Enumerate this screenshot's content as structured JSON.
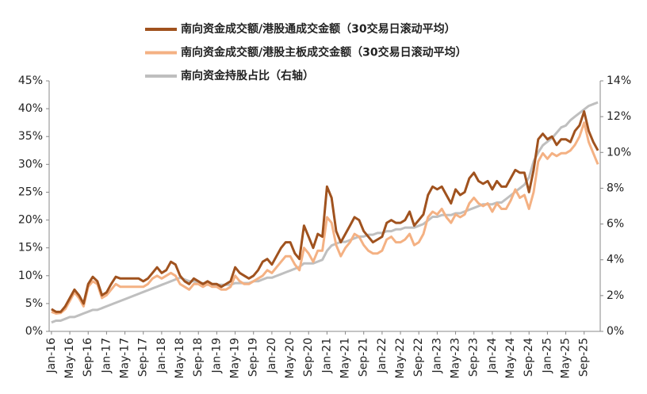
{
  "chart_data": {
    "type": "line",
    "categories": [
      "Jan-16",
      null,
      null,
      null,
      "May-16",
      null,
      null,
      null,
      "Sep-16",
      null,
      null,
      null,
      "Jan-17",
      null,
      null,
      null,
      "May-17",
      null,
      null,
      null,
      "Sep-17",
      null,
      null,
      null,
      "Jan-18",
      null,
      null,
      null,
      "May-18",
      null,
      null,
      null,
      "Sep-18",
      null,
      null,
      null,
      "Jan-19",
      null,
      null,
      null,
      "May-19",
      null,
      null,
      null,
      "Sep-19",
      null,
      null,
      null,
      "Jan-20",
      null,
      null,
      null,
      "May-20",
      null,
      null,
      null,
      "Sep-20",
      null,
      null,
      null,
      "Jan-21",
      null,
      null,
      null,
      "May-21",
      null,
      null,
      null,
      "Sep-21",
      null,
      null,
      null,
      "Jan-22",
      null,
      null,
      null,
      "May-22",
      null,
      null,
      null,
      "Sep-22",
      null,
      null,
      null,
      "Jan-23",
      null,
      null,
      null,
      "May-23",
      null,
      null,
      null,
      "Sep-23",
      null,
      null,
      null,
      "Jan-24",
      null,
      null,
      null,
      "May-24",
      null,
      null,
      null,
      "Sep-24",
      null,
      null,
      null,
      "Jan-25",
      null,
      null,
      null,
      "May-25",
      null,
      null,
      null,
      "Sep-25",
      null,
      null,
      null
    ],
    "series": [
      {
        "name": "南向资金成交额/港股通成交金额（30交易日滚动平均）",
        "color": "#a0521e",
        "values": [
          4,
          3.5,
          3.5,
          4.5,
          6,
          7.5,
          6.5,
          5,
          8.5,
          9.8,
          9,
          6.5,
          7,
          8.5,
          9.8,
          9.5,
          9.5,
          9.5,
          9.5,
          9.5,
          9,
          9.5,
          10.5,
          11.5,
          10.5,
          11,
          12.5,
          12,
          10,
          9,
          8.5,
          9.5,
          9,
          8.5,
          9,
          8.5,
          8.5,
          8,
          8.5,
          9,
          11.5,
          10.5,
          10,
          9.5,
          10,
          11,
          12.5,
          13,
          12,
          13.5,
          15,
          16,
          16,
          14,
          13,
          19,
          17,
          15,
          17.5,
          17,
          26,
          24,
          18,
          16,
          17.5,
          19,
          20.5,
          20,
          18,
          17,
          16,
          16.5,
          17,
          19.5,
          20,
          19.5,
          19.5,
          20,
          21.5,
          19,
          20,
          21,
          24.5,
          26,
          25.5,
          26,
          24.5,
          23,
          25.5,
          24.5,
          25,
          27.5,
          28.5,
          27,
          26.5,
          27,
          25.5,
          27,
          26,
          26,
          27.5,
          29,
          28.5,
          28.5,
          25,
          29,
          34.5,
          35.5,
          34.5,
          35,
          33.5,
          34.5,
          34.5,
          34,
          36,
          37,
          39.5,
          36,
          34,
          32.5
        ]
      },
      {
        "name": "南向资金成交额/港股主板成交金额（30交易日滚动平均）",
        "color": "#f4b183",
        "values": [
          3.5,
          3.2,
          3.3,
          4,
          5.5,
          7,
          6,
          4.5,
          8,
          9,
          8.5,
          6,
          6.5,
          7.5,
          8.5,
          8,
          8,
          8,
          8,
          8,
          8,
          8.5,
          9.5,
          10,
          9.5,
          10,
          10.5,
          10,
          8.5,
          8,
          7.5,
          8.5,
          8.5,
          8,
          8.5,
          8,
          8,
          7.5,
          7.5,
          8,
          10,
          9,
          8.5,
          8.5,
          9,
          9.5,
          10,
          11,
          10.5,
          11.5,
          12.5,
          13.5,
          13.5,
          12,
          11,
          15,
          14,
          12.5,
          14.5,
          14.5,
          20.5,
          19.5,
          15.5,
          13.5,
          15,
          16,
          17.5,
          17,
          15.5,
          14.5,
          14,
          14,
          14.5,
          16.5,
          17,
          16,
          16,
          16.5,
          17.5,
          15.5,
          16,
          17.5,
          20.5,
          21.5,
          21,
          22,
          20.5,
          19.5,
          21,
          20.5,
          21,
          23,
          24,
          23,
          22.5,
          23,
          21.5,
          23,
          22,
          22,
          23.5,
          25.5,
          24,
          24.5,
          22,
          25,
          30.5,
          32,
          31,
          32,
          31.5,
          32,
          32,
          32.5,
          33.5,
          35,
          37.5,
          34,
          32,
          30
        ]
      },
      {
        "name": "南向资金持股占比（右轴）",
        "color": "#bfbfbf",
        "axis": "y2",
        "values": [
          0.5,
          0.6,
          0.6,
          0.7,
          0.8,
          0.8,
          0.9,
          1.0,
          1.1,
          1.2,
          1.2,
          1.3,
          1.4,
          1.5,
          1.6,
          1.7,
          1.8,
          1.9,
          2.0,
          2.1,
          2.2,
          2.3,
          2.4,
          2.5,
          2.6,
          2.7,
          2.8,
          2.9,
          3.0,
          2.9,
          2.8,
          2.8,
          2.7,
          2.7,
          2.6,
          2.6,
          2.6,
          2.6,
          2.6,
          2.6,
          2.7,
          2.7,
          2.7,
          2.7,
          2.8,
          2.8,
          2.9,
          3.0,
          3.0,
          3.1,
          3.2,
          3.3,
          3.4,
          3.5,
          3.6,
          3.8,
          3.8,
          3.8,
          3.9,
          4.0,
          4.5,
          4.8,
          4.9,
          5.0,
          5.0,
          5.1,
          5.2,
          5.3,
          5.3,
          5.4,
          5.4,
          5.5,
          5.5,
          5.6,
          5.6,
          5.7,
          5.7,
          5.8,
          5.8,
          5.8,
          5.9,
          6.0,
          6.2,
          6.4,
          6.4,
          6.5,
          6.5,
          6.5,
          6.6,
          6.6,
          6.7,
          6.8,
          6.9,
          7.0,
          7.1,
          7.1,
          7.1,
          7.2,
          7.2,
          7.4,
          7.6,
          7.8,
          8.0,
          8.2,
          8.6,
          9.5,
          10.0,
          10.4,
          10.6,
          10.8,
          11.1,
          11.4,
          11.5,
          11.8,
          12.0,
          12.2,
          12.4,
          12.6,
          12.7,
          12.8
        ]
      }
    ],
    "ylim": [
      0,
      45
    ],
    "yticks": [
      {
        "value": 0,
        "label": "0%"
      },
      {
        "value": 5,
        "label": "5%"
      },
      {
        "value": 10,
        "label": "10%"
      },
      {
        "value": 15,
        "label": "15%"
      },
      {
        "value": 20,
        "label": "20%"
      },
      {
        "value": 25,
        "label": "25%"
      },
      {
        "value": 30,
        "label": "30%"
      },
      {
        "value": 35,
        "label": "35%"
      },
      {
        "value": 40,
        "label": "40%"
      },
      {
        "value": 45,
        "label": "45%"
      }
    ],
    "y2lim": [
      0,
      14
    ],
    "y2ticks": [
      {
        "value": 0,
        "label": "0%"
      },
      {
        "value": 2,
        "label": "2%"
      },
      {
        "value": 4,
        "label": "4%"
      },
      {
        "value": 6,
        "label": "6%"
      },
      {
        "value": 8,
        "label": "8%"
      },
      {
        "value": 10,
        "label": "10%"
      },
      {
        "value": 12,
        "label": "12%"
      },
      {
        "value": 14,
        "label": "14%"
      }
    ],
    "grid": false
  }
}
